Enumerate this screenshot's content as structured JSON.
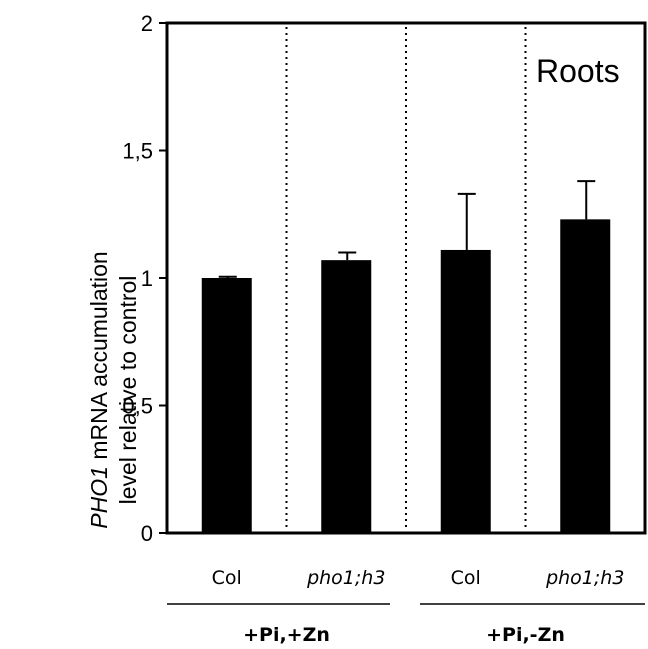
{
  "chart_data": {
    "type": "bar",
    "panel_label": "Roots",
    "ylabel_italic": "PHO1",
    "ylabel_line1_rest": " mRNA accumulation",
    "ylabel_line2": "level relative to control",
    "ylim": [
      0,
      2
    ],
    "yticks": [
      {
        "value": 0,
        "label": "0"
      },
      {
        "value": 0.5,
        "label": "0,5"
      },
      {
        "value": 1,
        "label": "1"
      },
      {
        "value": 1.5,
        "label": "1,5"
      },
      {
        "value": 2,
        "label": "2"
      }
    ],
    "categories": [
      "Col",
      "pho1;h3",
      "Col",
      "pho1;h3"
    ],
    "category_italic": [
      false,
      true,
      false,
      true
    ],
    "values": [
      1.0,
      1.07,
      1.11,
      1.23
    ],
    "errors": [
      0.005,
      0.03,
      0.22,
      0.15
    ],
    "bar_color": "#000000",
    "groups": [
      {
        "label": "+Pi,+Zn",
        "categories": [
          0,
          1
        ]
      },
      {
        "label": "+Pi,-Zn",
        "categories": [
          2,
          3
        ]
      }
    ],
    "separators": "dotted vertical lines between categories",
    "grid": false
  }
}
